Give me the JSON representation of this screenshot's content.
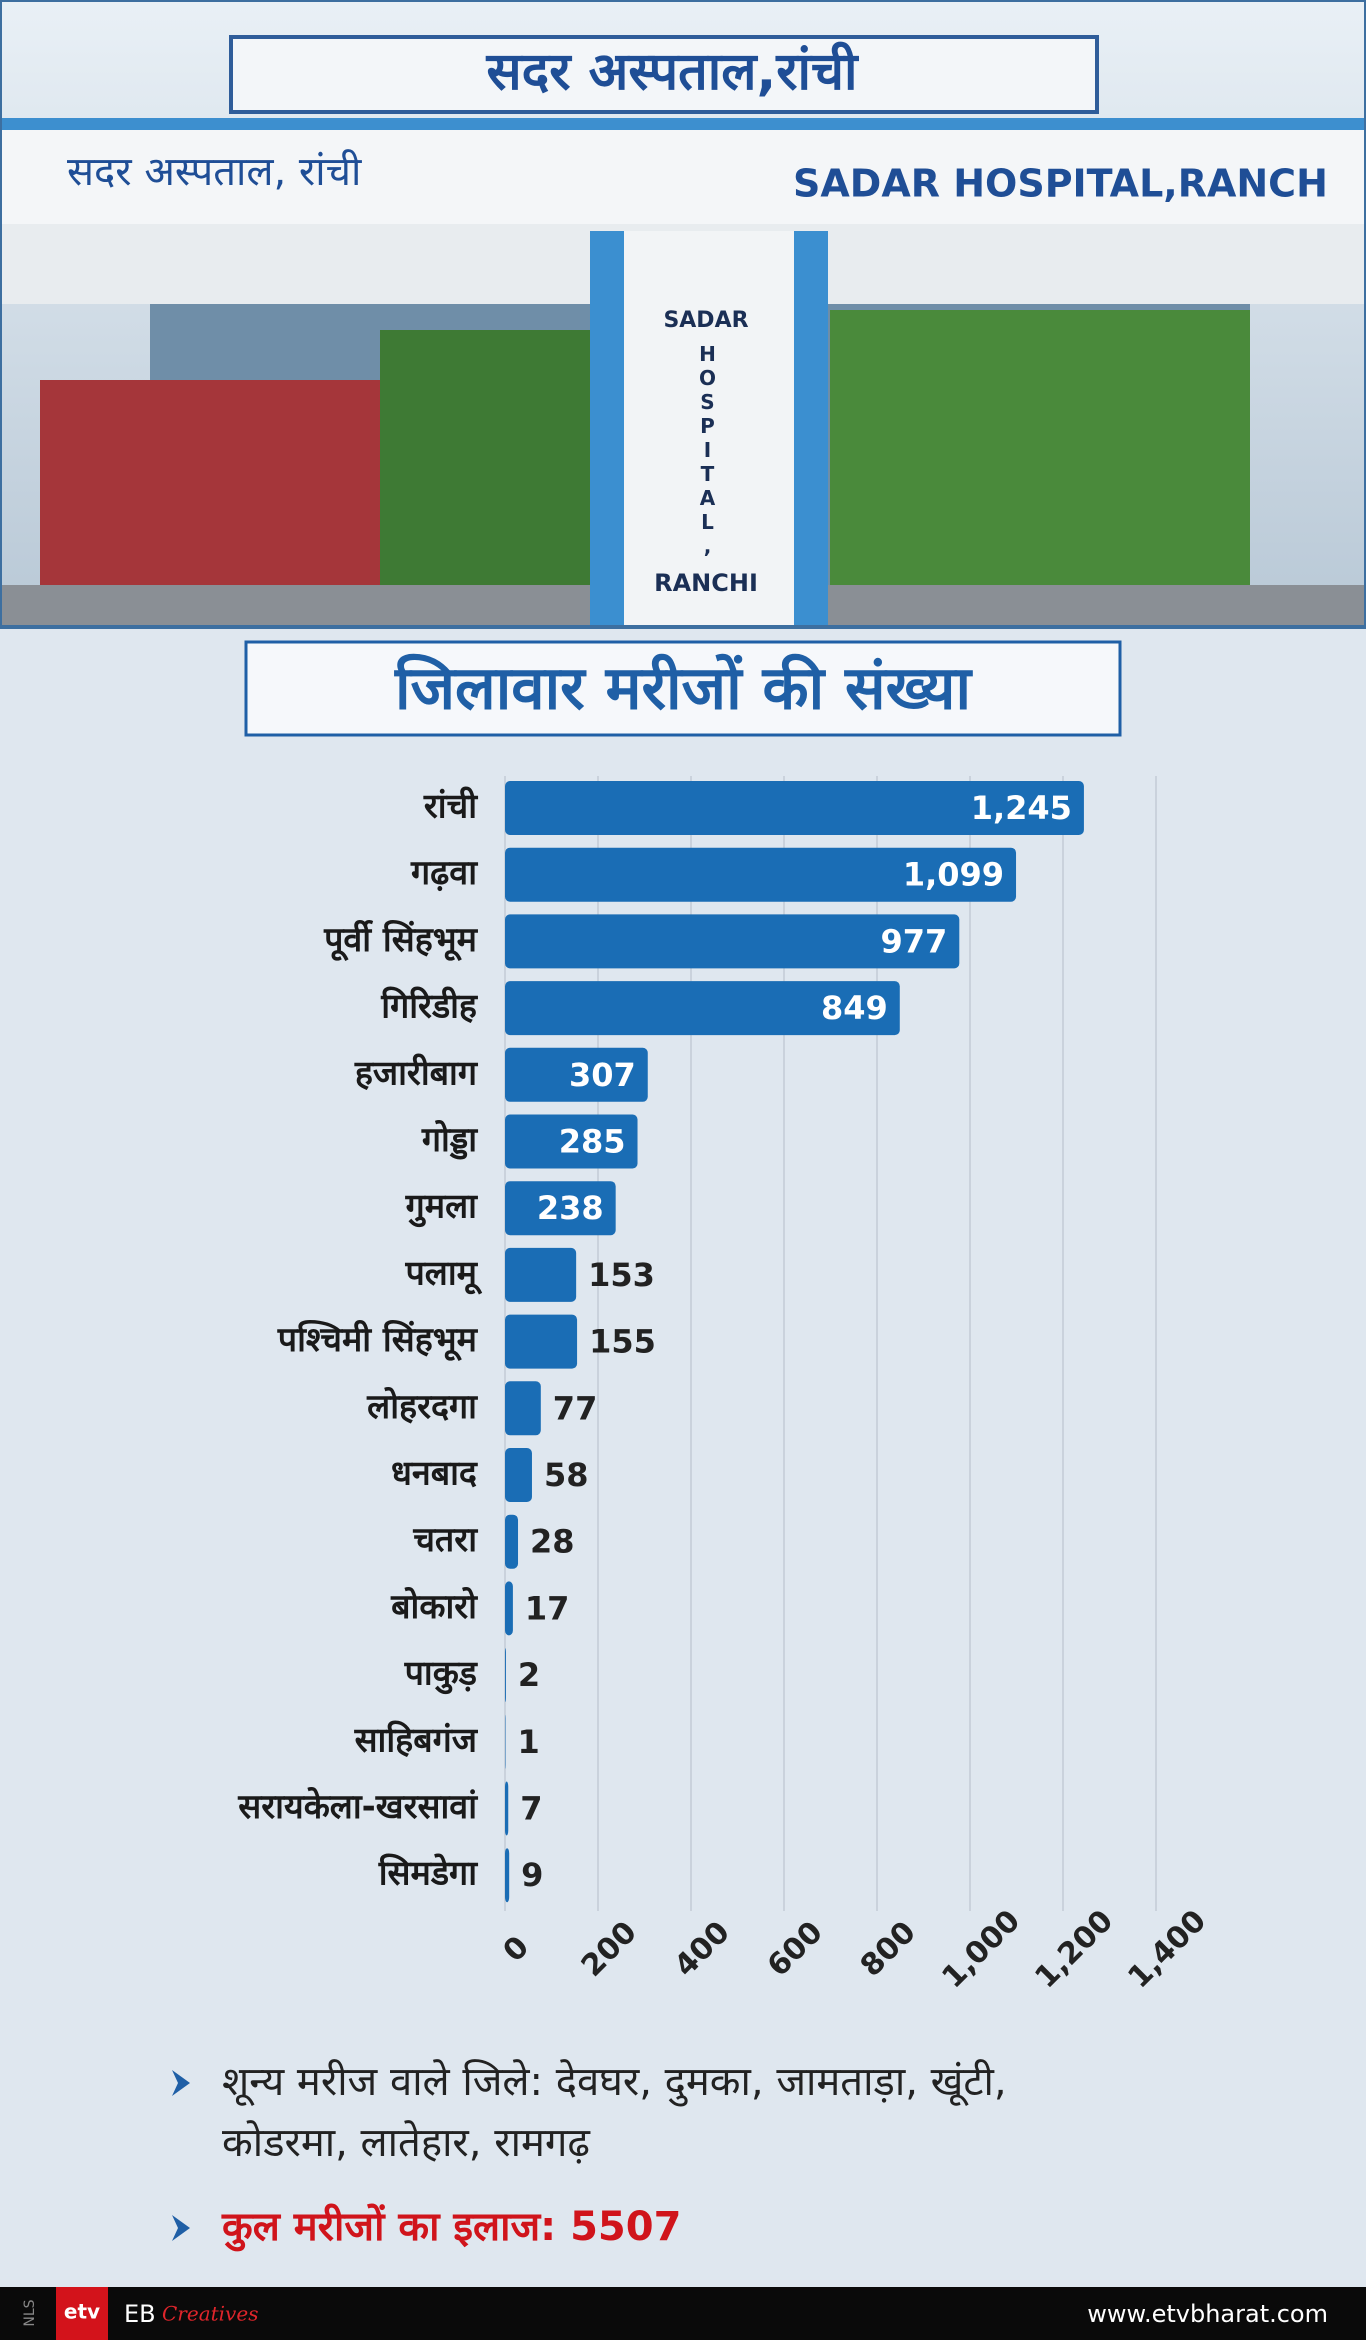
{
  "photo": {
    "signs": [
      "सदर अस्पताल,रांची",
      "सदर अस्पताल, रांची",
      "SADAR HOSPITAL,RANCH",
      "SADAR",
      "HOSPITAL,",
      "RANCHI"
    ]
  },
  "chart_data": {
    "type": "bar",
    "orientation": "horizontal",
    "title": "जिलावार मरीजों की संख्या",
    "categories": [
      "रांची",
      "गढ़वा",
      "पूर्वी सिंहभूम",
      "गिरिडीह",
      "हजारीबाग",
      "गोड्डा",
      "गुमला",
      "पलामू",
      "पश्चिमी सिंहभूम",
      "लोहरदगा",
      "धनबाद",
      "चतरा",
      "बोकारो",
      "पाकुड़",
      "साहिबगंज",
      "सरायकेला-खरसावां",
      "सिमडेगा"
    ],
    "values": [
      1245,
      1099,
      977,
      849,
      307,
      285,
      238,
      153,
      155,
      77,
      58,
      28,
      17,
      2,
      1,
      7,
      9
    ],
    "value_labels": [
      "1,245",
      "1,099",
      "977",
      "849",
      "307",
      "285",
      "238",
      "153",
      "155",
      "77",
      "58",
      "28",
      "17",
      "2",
      "1",
      "7",
      "9"
    ],
    "color": "#1a6db5",
    "xlim": [
      0,
      1400
    ],
    "xticks": [
      0,
      200,
      400,
      600,
      800,
      {
        "value": 1000,
        "label": "1,000"
      },
      {
        "value": 1200,
        "label": "1,200"
      },
      {
        "value": 1400,
        "label": "1,400"
      }
    ],
    "grid": true
  },
  "notes": {
    "zero_lines": [
      "शून्य मरीज वाले जिले: देवघर, दुमका, जामताड़ा, खूंटी,",
      "कोडरमा, लातेहार, रामगढ़"
    ],
    "total": "कुल मरीजों का इलाज: 5507"
  },
  "footer": {
    "side": "NLS",
    "logo": "etv",
    "brand": "EB",
    "brand_sub": "Creatives",
    "site": "www.etvbharat.com"
  }
}
